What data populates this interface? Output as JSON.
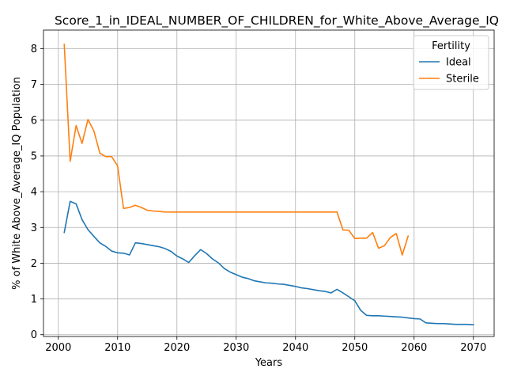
{
  "chart_data": {
    "type": "line",
    "title": "Score_1_in_IDEAL_NUMBER_OF_CHILDREN_for_White_Above_Average_IQ",
    "xlabel": "Years",
    "ylabel": "% of White Above_Average_IQ Population",
    "xlim": [
      1997.5,
      2073.5
    ],
    "ylim": [
      -0.05,
      8.52
    ],
    "xticks": [
      2000,
      2010,
      2020,
      2030,
      2040,
      2050,
      2060,
      2070
    ],
    "yticks": [
      0,
      1,
      2,
      3,
      4,
      5,
      6,
      7,
      8
    ],
    "grid": true,
    "legend": {
      "title": "Fertility",
      "placement": "top-right"
    },
    "series": [
      {
        "name": "Ideal",
        "color": "#1f77b4",
        "points": [
          [
            2001,
            2.86
          ],
          [
            2002,
            3.73
          ],
          [
            2003,
            3.66
          ],
          [
            2004,
            3.22
          ],
          [
            2005,
            2.94
          ],
          [
            2006,
            2.75
          ],
          [
            2007,
            2.57
          ],
          [
            2008,
            2.47
          ],
          [
            2009,
            2.34
          ],
          [
            2010,
            2.29
          ],
          [
            2011,
            2.28
          ],
          [
            2012,
            2.23
          ],
          [
            2013,
            2.57
          ],
          [
            2014,
            2.55
          ],
          [
            2015,
            2.52
          ],
          [
            2016,
            2.49
          ],
          [
            2017,
            2.46
          ],
          [
            2018,
            2.41
          ],
          [
            2019,
            2.33
          ],
          [
            2020,
            2.2
          ],
          [
            2021,
            2.12
          ],
          [
            2022,
            2.02
          ],
          [
            2023,
            2.21
          ],
          [
            2024,
            2.38
          ],
          [
            2025,
            2.27
          ],
          [
            2026,
            2.12
          ],
          [
            2027,
            2.01
          ],
          [
            2028,
            1.85
          ],
          [
            2029,
            1.75
          ],
          [
            2030,
            1.68
          ],
          [
            2031,
            1.61
          ],
          [
            2032,
            1.57
          ],
          [
            2033,
            1.51
          ],
          [
            2034,
            1.48
          ],
          [
            2035,
            1.45
          ],
          [
            2036,
            1.44
          ],
          [
            2037,
            1.42
          ],
          [
            2038,
            1.41
          ],
          [
            2039,
            1.38
          ],
          [
            2040,
            1.35
          ],
          [
            2041,
            1.31
          ],
          [
            2042,
            1.29
          ],
          [
            2043,
            1.26
          ],
          [
            2044,
            1.23
          ],
          [
            2045,
            1.21
          ],
          [
            2046,
            1.17
          ],
          [
            2047,
            1.27
          ],
          [
            2048,
            1.17
          ],
          [
            2049,
            1.06
          ],
          [
            2050,
            0.95
          ],
          [
            2051,
            0.68
          ],
          [
            2052,
            0.54
          ],
          [
            2053,
            0.53
          ],
          [
            2054,
            0.53
          ],
          [
            2055,
            0.52
          ],
          [
            2056,
            0.51
          ],
          [
            2057,
            0.5
          ],
          [
            2058,
            0.49
          ],
          [
            2059,
            0.47
          ],
          [
            2060,
            0.45
          ],
          [
            2061,
            0.44
          ],
          [
            2062,
            0.33
          ],
          [
            2063,
            0.32
          ],
          [
            2064,
            0.31
          ],
          [
            2065,
            0.31
          ],
          [
            2066,
            0.3
          ],
          [
            2067,
            0.29
          ],
          [
            2068,
            0.29
          ],
          [
            2069,
            0.29
          ],
          [
            2070,
            0.28
          ]
        ]
      },
      {
        "name": "Sterile",
        "color": "#ff7f0e",
        "points": [
          [
            2001,
            8.12
          ],
          [
            2002,
            4.85
          ],
          [
            2003,
            5.85
          ],
          [
            2004,
            5.35
          ],
          [
            2005,
            6.02
          ],
          [
            2006,
            5.7
          ],
          [
            2007,
            5.08
          ],
          [
            2008,
            4.98
          ],
          [
            2009,
            4.98
          ],
          [
            2010,
            4.72
          ],
          [
            2011,
            3.53
          ],
          [
            2012,
            3.56
          ],
          [
            2013,
            3.62
          ],
          [
            2014,
            3.56
          ],
          [
            2015,
            3.48
          ],
          [
            2016,
            3.46
          ],
          [
            2017,
            3.45
          ],
          [
            2018,
            3.43
          ],
          [
            2019,
            3.43
          ],
          [
            2020,
            3.43
          ],
          [
            2025,
            3.43
          ],
          [
            2030,
            3.43
          ],
          [
            2035,
            3.43
          ],
          [
            2040,
            3.43
          ],
          [
            2045,
            3.43
          ],
          [
            2046,
            3.43
          ],
          [
            2047,
            3.43
          ],
          [
            2048,
            2.93
          ],
          [
            2049,
            2.92
          ],
          [
            2050,
            2.69
          ],
          [
            2051,
            2.7
          ],
          [
            2052,
            2.7
          ],
          [
            2053,
            2.86
          ],
          [
            2054,
            2.42
          ],
          [
            2055,
            2.49
          ],
          [
            2056,
            2.72
          ],
          [
            2057,
            2.83
          ],
          [
            2058,
            2.23
          ],
          [
            2059,
            2.76
          ]
        ]
      }
    ]
  }
}
